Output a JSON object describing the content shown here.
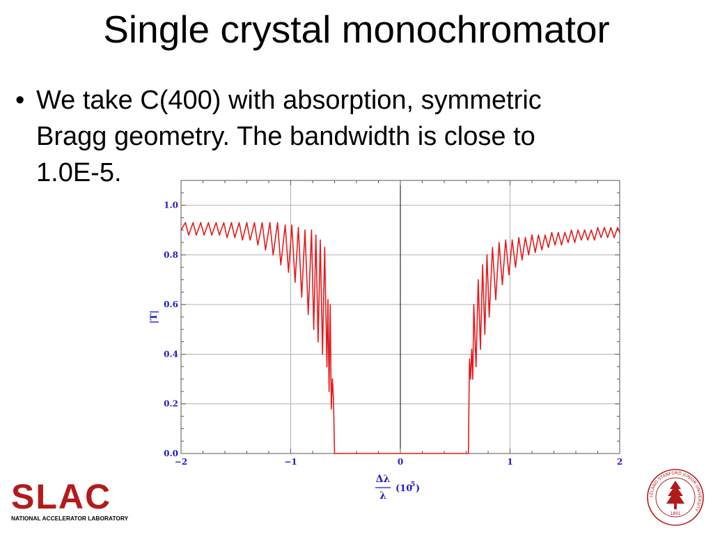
{
  "slide": {
    "title": "Single crystal monochromator",
    "bullet_marker": "•",
    "bullet_lines": [
      "We take C(400) with absorption, symmetric",
      "Bragg geometry. The bandwidth is close to",
      "1.0E-5."
    ]
  },
  "footer": {
    "logo_text": "SLAC",
    "logo_subtitle": "NATIONAL ACCELERATOR LABORATORY",
    "seal_text": "LELAND STANFORD JUNIOR UNIVERSITY",
    "seal_year": "1891"
  },
  "colors": {
    "curve": "#e41a1c",
    "axis_text": "#1a1acc",
    "slac_red": "#b31b1b",
    "seal": "#b31b1b",
    "grid": "#b0b0b0"
  },
  "chart_data": {
    "type": "line",
    "title": "",
    "xlabel_numerator": "Δλ",
    "xlabel_denominator": "λ",
    "xlabel_suffix": "(10",
    "xlabel_exponent": "5",
    "xlabel_close": ")",
    "ylabel": "|T|",
    "xlim": [
      -2,
      2
    ],
    "ylim": [
      0,
      1.1
    ],
    "x_ticks": [
      -2,
      -1,
      0,
      1,
      2
    ],
    "x_tick_labels": [
      "−2",
      "−1",
      "0",
      "1",
      "2"
    ],
    "y_ticks": [
      0,
      0.2,
      0.4,
      0.6,
      0.8,
      1.0
    ],
    "y_tick_labels": [
      "0.0",
      "0.2",
      "0.4",
      "0.6",
      "0.8",
      "1.0"
    ],
    "grid": true,
    "legend": "none",
    "series": [
      {
        "x": [
          -2.0,
          -1.96,
          -1.93,
          -1.89,
          -1.86,
          -1.82,
          -1.79,
          -1.75,
          -1.72,
          -1.68,
          -1.65,
          -1.61,
          -1.58,
          -1.54,
          -1.51,
          -1.47,
          -1.44,
          -1.4,
          -1.37,
          -1.33,
          -1.3,
          -1.26,
          -1.23,
          -1.19,
          -1.16,
          -1.12,
          -1.09,
          -1.05,
          -1.02,
          -0.99,
          -0.96,
          -0.93,
          -0.9,
          -0.87,
          -0.84,
          -0.81,
          -0.79,
          -0.77,
          -0.75,
          -0.73,
          -0.71,
          -0.69,
          -0.67,
          -0.66,
          -0.65,
          -0.64,
          -0.63,
          -0.62,
          -0.61,
          -0.6,
          -0.58,
          0.0,
          0.62,
          0.63,
          0.64,
          0.65,
          0.66,
          0.67,
          0.69,
          0.71,
          0.73,
          0.75,
          0.77,
          0.79,
          0.81,
          0.84,
          0.87,
          0.9,
          0.93,
          0.96,
          0.99,
          1.02,
          1.05,
          1.08,
          1.11,
          1.14,
          1.17,
          1.2,
          1.23,
          1.26,
          1.29,
          1.32,
          1.35,
          1.38,
          1.41,
          1.44,
          1.47,
          1.5,
          1.53,
          1.56,
          1.59,
          1.62,
          1.65,
          1.68,
          1.71,
          1.74,
          1.77,
          1.8,
          1.83,
          1.86,
          1.89,
          1.92,
          1.95,
          1.98,
          2.0
        ],
        "y": [
          0.9,
          0.93,
          0.88,
          0.93,
          0.88,
          0.93,
          0.88,
          0.93,
          0.88,
          0.93,
          0.88,
          0.93,
          0.87,
          0.93,
          0.87,
          0.93,
          0.86,
          0.93,
          0.86,
          0.93,
          0.84,
          0.93,
          0.82,
          0.93,
          0.8,
          0.93,
          0.76,
          0.92,
          0.73,
          0.92,
          0.69,
          0.91,
          0.63,
          0.9,
          0.56,
          0.9,
          0.5,
          0.88,
          0.45,
          0.86,
          0.4,
          0.83,
          0.35,
          0.62,
          0.25,
          0.6,
          0.18,
          0.3,
          0.22,
          0.0,
          0.0,
          0.0,
          0.0,
          0.38,
          0.3,
          0.42,
          0.3,
          0.6,
          0.35,
          0.7,
          0.42,
          0.76,
          0.48,
          0.8,
          0.55,
          0.83,
          0.62,
          0.85,
          0.68,
          0.86,
          0.72,
          0.86,
          0.75,
          0.87,
          0.78,
          0.87,
          0.8,
          0.88,
          0.81,
          0.88,
          0.82,
          0.88,
          0.83,
          0.89,
          0.84,
          0.89,
          0.84,
          0.89,
          0.85,
          0.9,
          0.85,
          0.9,
          0.86,
          0.9,
          0.86,
          0.9,
          0.86,
          0.91,
          0.87,
          0.91,
          0.87,
          0.91,
          0.87,
          0.91,
          0.89
        ]
      }
    ]
  }
}
